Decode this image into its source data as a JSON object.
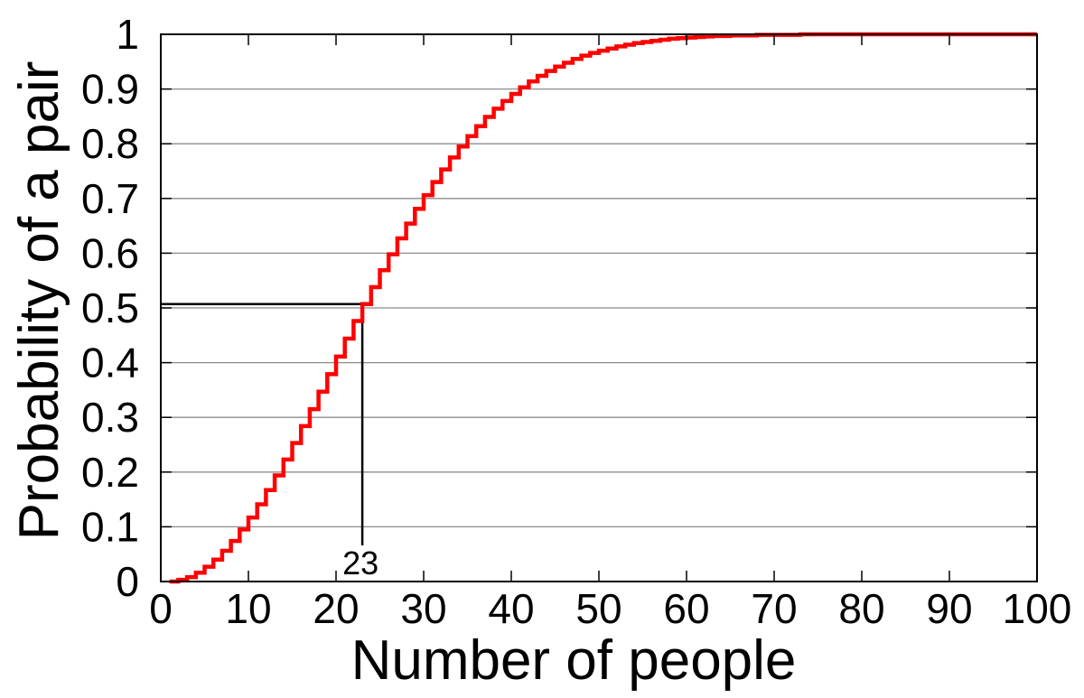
{
  "chart_data": {
    "type": "line",
    "step": true,
    "title": "",
    "xlabel": "Number of people",
    "ylabel": "Probability of a pair",
    "xlim": [
      0,
      100
    ],
    "ylim": [
      0,
      1
    ],
    "x_ticks": [
      0,
      10,
      20,
      30,
      40,
      50,
      60,
      70,
      80,
      90,
      100
    ],
    "x_tick_labels": [
      "0",
      "10",
      "20",
      "30",
      "40",
      "50",
      "60",
      "70",
      "80",
      "90",
      "100"
    ],
    "y_ticks": [
      0,
      0.1,
      0.2,
      0.3,
      0.4,
      0.5,
      0.6,
      0.7,
      0.8,
      0.9,
      1
    ],
    "y_tick_labels": [
      "0",
      "0.1",
      "0.2",
      "0.3",
      "0.4",
      "0.5",
      "0.6",
      "0.7",
      "0.8",
      "0.9",
      "1"
    ],
    "grid": {
      "horizontal": true,
      "vertical": false
    },
    "series": [
      {
        "color": "#ff0000",
        "x": [
          1,
          2,
          3,
          4,
          5,
          6,
          7,
          8,
          9,
          10,
          11,
          12,
          13,
          14,
          15,
          16,
          17,
          18,
          19,
          20,
          21,
          22,
          23,
          24,
          25,
          26,
          27,
          28,
          29,
          30,
          31,
          32,
          33,
          34,
          35,
          36,
          37,
          38,
          39,
          40,
          41,
          42,
          43,
          44,
          45,
          46,
          47,
          48,
          49,
          50,
          51,
          52,
          53,
          54,
          55,
          56,
          57,
          58,
          59,
          60,
          61,
          62,
          63,
          64,
          65,
          66,
          67,
          68,
          69,
          70,
          71,
          72,
          73,
          74,
          75,
          76,
          77,
          78,
          79,
          80,
          81,
          82,
          83,
          84,
          85,
          86,
          87,
          88,
          89,
          90,
          91,
          92,
          93,
          94,
          95,
          96,
          97,
          98,
          99,
          100
        ],
        "y": [
          0,
          0.003,
          0.008,
          0.016,
          0.027,
          0.04,
          0.056,
          0.074,
          0.095,
          0.117,
          0.141,
          0.167,
          0.194,
          0.223,
          0.253,
          0.284,
          0.315,
          0.347,
          0.379,
          0.411,
          0.444,
          0.476,
          0.507,
          0.538,
          0.569,
          0.598,
          0.627,
          0.654,
          0.681,
          0.706,
          0.73,
          0.753,
          0.775,
          0.795,
          0.814,
          0.832,
          0.849,
          0.864,
          0.878,
          0.891,
          0.903,
          0.914,
          0.924,
          0.933,
          0.941,
          0.948,
          0.955,
          0.961,
          0.966,
          0.97,
          0.974,
          0.978,
          0.981,
          0.984,
          0.986,
          0.988,
          0.99,
          0.992,
          0.993,
          0.994,
          0.995,
          0.996,
          0.997,
          0.997,
          0.998,
          0.998,
          0.998,
          0.999,
          0.999,
          0.999,
          0.999,
          0.999,
          1,
          1,
          1,
          1,
          1,
          1,
          1,
          1,
          1,
          1,
          1,
          1,
          1,
          1,
          1,
          1,
          1,
          1,
          1,
          1,
          1,
          1,
          1,
          1,
          1,
          1,
          1,
          1
        ]
      }
    ],
    "annotation": {
      "x": 23,
      "y": 0.507,
      "label": "23"
    }
  }
}
